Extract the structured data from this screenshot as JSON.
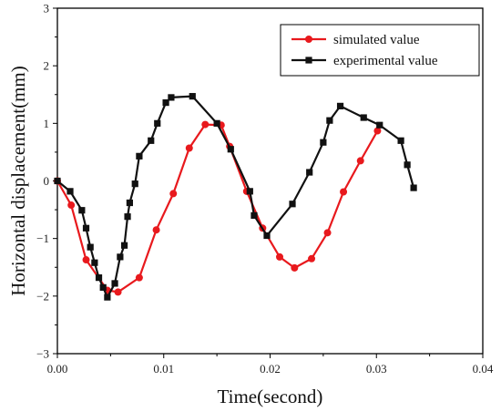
{
  "chart_data": {
    "type": "line",
    "title": "",
    "xlabel": "Time(second)",
    "ylabel": "Horizontal displacement(mm)",
    "xlim": [
      0,
      0.04
    ],
    "ylim": [
      -3,
      3
    ],
    "xticks": [
      0,
      0.01,
      0.02,
      0.03,
      0.04
    ],
    "xtick_labels": [
      "0.00",
      "0.01",
      "0.02",
      "0.03",
      "0.04"
    ],
    "yticks": [
      -3,
      -2,
      -1,
      0,
      1,
      2,
      3
    ],
    "ytick_labels": [
      "−3",
      "−2",
      "−1",
      "0",
      "1",
      "2",
      "3"
    ],
    "grid": false,
    "legend_position": "top-right",
    "series": [
      {
        "name": "simulated value",
        "color": "#e8191d",
        "marker": "circle",
        "x": [
          0.0,
          0.0013,
          0.0027,
          0.0047,
          0.0057,
          0.0077,
          0.0093,
          0.0109,
          0.0124,
          0.0139,
          0.0154,
          0.0162,
          0.0178,
          0.0193,
          0.0209,
          0.0223,
          0.0239,
          0.0254,
          0.0269,
          0.0285,
          0.0301
        ],
        "y": [
          0.0,
          -0.42,
          -1.37,
          -1.9,
          -1.93,
          -1.68,
          -0.85,
          -0.22,
          0.57,
          0.98,
          0.97,
          0.6,
          -0.18,
          -0.82,
          -1.32,
          -1.51,
          -1.35,
          -0.9,
          -0.19,
          0.35,
          0.87
        ]
      },
      {
        "name": "experimental value",
        "color": "#111111",
        "marker": "square",
        "x": [
          0.0,
          0.0012,
          0.0023,
          0.0027,
          0.0031,
          0.0035,
          0.0039,
          0.0043,
          0.0047,
          0.0054,
          0.0059,
          0.0063,
          0.0066,
          0.0068,
          0.0073,
          0.0077,
          0.0088,
          0.0094,
          0.0102,
          0.0107,
          0.0127,
          0.015,
          0.0163,
          0.0181,
          0.0185,
          0.0197,
          0.0221,
          0.0237,
          0.025,
          0.0256,
          0.0266,
          0.0288,
          0.0303,
          0.0323,
          0.0329,
          0.0335
        ],
        "y": [
          0.0,
          -0.18,
          -0.51,
          -0.82,
          -1.15,
          -1.42,
          -1.68,
          -1.85,
          -2.02,
          -1.78,
          -1.32,
          -1.12,
          -0.62,
          -0.38,
          -0.05,
          0.43,
          0.7,
          1.0,
          1.36,
          1.45,
          1.47,
          1.0,
          0.55,
          -0.18,
          -0.6,
          -0.95,
          -0.4,
          0.15,
          0.67,
          1.05,
          1.3,
          1.1,
          0.97,
          0.7,
          0.28,
          -0.12
        ]
      }
    ]
  }
}
